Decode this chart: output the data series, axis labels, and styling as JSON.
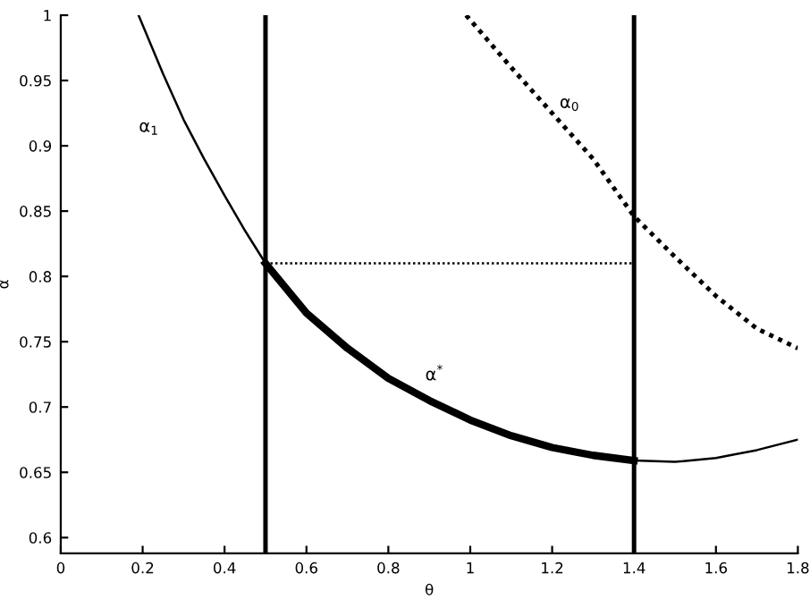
{
  "chart_data": {
    "type": "line",
    "xlabel": "θ",
    "ylabel": "α",
    "xlim": [
      0,
      1.8
    ],
    "ylim": [
      0.588,
      1
    ],
    "xticks": [
      0,
      0.2,
      0.4,
      0.6,
      0.8,
      1,
      1.2,
      1.4,
      1.6,
      1.8
    ],
    "yticks": [
      0.6,
      0.65,
      0.7,
      0.75,
      0.8,
      0.85,
      0.9,
      0.95,
      1
    ],
    "grid": false,
    "legend": false,
    "marker": "none",
    "series": [
      {
        "name": "α$_{1}$",
        "color": "#000000",
        "line_style": "solid",
        "x": [
          0.19,
          0.25,
          0.3,
          0.35,
          0.4,
          0.45,
          0.5,
          0.6,
          0.7,
          0.8,
          0.9,
          1.0,
          1.1,
          1.2,
          1.3,
          1.4,
          1.5,
          1.6,
          1.7,
          1.8
        ],
        "values": [
          1.0,
          0.955,
          0.92,
          0.89,
          0.862,
          0.835,
          0.81,
          0.772,
          0.745,
          0.722,
          0.705,
          0.69,
          0.678,
          0.669,
          0.663,
          0.659,
          0.658,
          0.661,
          0.667,
          0.675
        ]
      },
      {
        "name": "α$^{*}$",
        "color": "#000000",
        "line_style": "solid",
        "x": [
          0.5,
          0.6,
          0.7,
          0.8,
          0.9,
          1.0,
          1.1,
          1.2,
          1.3,
          1.4
        ],
        "values": [
          0.81,
          0.772,
          0.745,
          0.722,
          0.705,
          0.69,
          0.678,
          0.669,
          0.663,
          0.659
        ]
      },
      {
        "name": "α$_{0}$",
        "color": "#000000",
        "line_style": "dotted",
        "x": [
          0.99,
          1.1,
          1.2,
          1.3,
          1.4,
          1.5,
          1.6,
          1.7,
          1.8
        ],
        "values": [
          1.0,
          0.96,
          0.925,
          0.89,
          0.846,
          0.815,
          0.785,
          0.76,
          0.745
        ]
      },
      {
        "color": "#000000",
        "line_style": "dotted",
        "x": [
          0.5,
          1.4
        ],
        "values": [
          0.81,
          0.81
        ]
      }
    ],
    "ref_lines": [
      {
        "axis": "x",
        "value": 0.5,
        "color": "#000000"
      },
      {
        "axis": "x",
        "value": 1.4,
        "color": "#000000"
      }
    ]
  }
}
